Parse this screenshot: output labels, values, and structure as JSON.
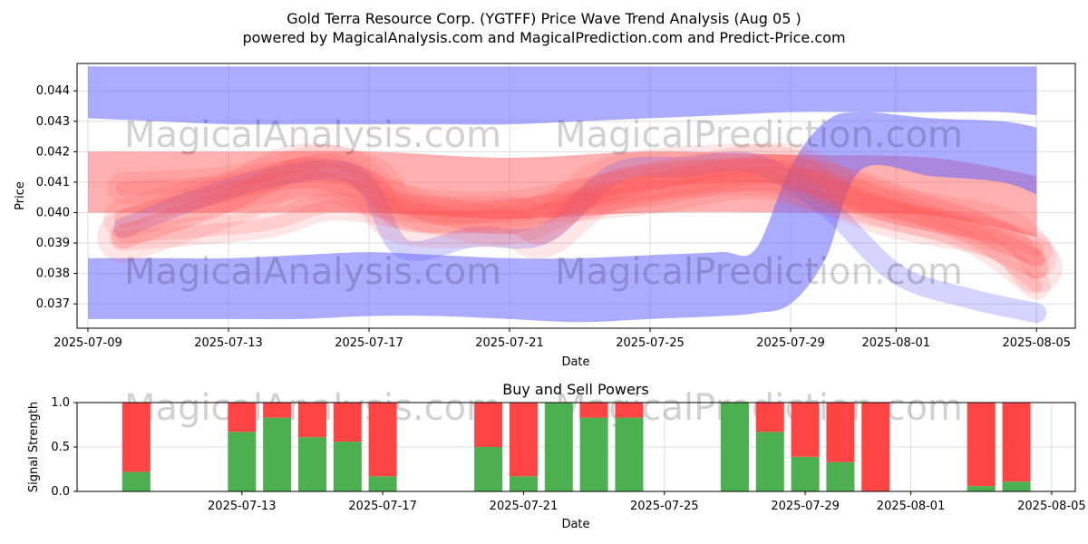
{
  "title_line1": "Gold Terra Resource Corp. (YGTFF) Price Wave Trend Analysis (Aug 05 )",
  "title_line2": "powered by MagicalAnalysis.com and MagicalPrediction.com and Predict-Price.com",
  "watermarks": [
    "MagicalAnalysis.com",
    "MagicalPrediction.com"
  ],
  "colors": {
    "blue_band": "#6666ff",
    "red_band": "#ff4d4d",
    "buy": "#4caf50",
    "sell": "#ff4444",
    "grid": "#dddddd"
  },
  "chart_data": [
    {
      "type": "area",
      "name": "price-wave-trend",
      "xlabel": "Date",
      "ylabel": "Price",
      "x_range": [
        "2025-07-09",
        "2025-08-06"
      ],
      "ylim": [
        0.0362,
        0.0449
      ],
      "yticks": [
        0.037,
        0.038,
        0.039,
        0.04,
        0.041,
        0.042,
        0.043,
        0.044
      ],
      "ytick_labels": [
        "0.037",
        "0.038",
        "0.039",
        "0.040",
        "0.041",
        "0.042",
        "0.043",
        "0.044"
      ],
      "xticks": [
        "2025-07-09",
        "2025-07-13",
        "2025-07-17",
        "2025-07-21",
        "2025-07-25",
        "2025-07-29",
        "2025-08-01",
        "2025-08-05"
      ],
      "grid": true,
      "blue_bands": [
        {
          "name": "upper-envelope",
          "dates": [
            "2025-07-09",
            "2025-07-11",
            "2025-07-13",
            "2025-07-15",
            "2025-07-17",
            "2025-07-19",
            "2025-07-21",
            "2025-07-23",
            "2025-07-25",
            "2025-07-27",
            "2025-07-29",
            "2025-07-31",
            "2025-08-02",
            "2025-08-04",
            "2025-08-05"
          ],
          "upper": [
            0.0448,
            0.0448,
            0.0448,
            0.0448,
            0.0448,
            0.0448,
            0.0448,
            0.0448,
            0.0448,
            0.0448,
            0.0448,
            0.0448,
            0.0448,
            0.0448,
            0.0448
          ],
          "lower": [
            0.0431,
            0.043,
            0.0429,
            0.0429,
            0.0429,
            0.0429,
            0.0429,
            0.043,
            0.0431,
            0.0432,
            0.0433,
            0.0433,
            0.0433,
            0.0433,
            0.0432
          ]
        },
        {
          "name": "lower-envelope-breakout",
          "dates": [
            "2025-07-09",
            "2025-07-11",
            "2025-07-13",
            "2025-07-15",
            "2025-07-17",
            "2025-07-19",
            "2025-07-21",
            "2025-07-23",
            "2025-07-25",
            "2025-07-27",
            "2025-07-28",
            "2025-07-29",
            "2025-07-30",
            "2025-07-31",
            "2025-08-02",
            "2025-08-04",
            "2025-08-05"
          ],
          "upper": [
            0.0385,
            0.0385,
            0.0385,
            0.0386,
            0.0387,
            0.0386,
            0.0385,
            0.0385,
            0.0386,
            0.0387,
            0.0388,
            0.0415,
            0.043,
            0.0433,
            0.0431,
            0.043,
            0.0428
          ],
          "lower": [
            0.0365,
            0.0365,
            0.0365,
            0.0365,
            0.0366,
            0.0366,
            0.0365,
            0.0364,
            0.0365,
            0.0366,
            0.0367,
            0.037,
            0.0385,
            0.0414,
            0.0412,
            0.041,
            0.0406
          ]
        },
        {
          "name": "wave-path",
          "dates": [
            "2025-07-10",
            "2025-07-12",
            "2025-07-14",
            "2025-07-16",
            "2025-07-17",
            "2025-07-18",
            "2025-07-20",
            "2025-07-22",
            "2025-07-24",
            "2025-07-26",
            "2025-07-28",
            "2025-07-30",
            "2025-08-01",
            "2025-08-03",
            "2025-08-05"
          ],
          "center": [
            0.0395,
            0.0404,
            0.0411,
            0.0414,
            0.0408,
            0.0388,
            0.0392,
            0.0393,
            0.0413,
            0.0415,
            0.0416,
            0.0402,
            0.038,
            0.0372,
            0.0367
          ]
        }
      ],
      "red_bands": [
        {
          "name": "main-channel",
          "dates": [
            "2025-07-09",
            "2025-07-13",
            "2025-07-17",
            "2025-07-21",
            "2025-07-25",
            "2025-07-29",
            "2025-08-02",
            "2025-08-05"
          ],
          "upper": [
            0.042,
            0.042,
            0.042,
            0.0418,
            0.042,
            0.0419,
            0.0418,
            0.0412
          ],
          "lower": [
            0.04,
            0.04,
            0.04,
            0.0398,
            0.04,
            0.04,
            0.0399,
            0.0392
          ]
        },
        {
          "name": "trend-a",
          "dates": [
            "2025-07-10",
            "2025-07-13",
            "2025-07-15",
            "2025-07-17",
            "2025-07-18",
            "2025-07-21",
            "2025-07-22",
            "2025-07-24",
            "2025-07-28",
            "2025-07-30",
            "2025-08-01",
            "2025-08-04",
            "2025-08-05"
          ],
          "center": [
            0.0392,
            0.0404,
            0.0414,
            0.041,
            0.0398,
            0.0397,
            0.0394,
            0.041,
            0.0414,
            0.0408,
            0.04,
            0.0393,
            0.0382
          ]
        },
        {
          "name": "trend-b",
          "dates": [
            "2025-07-10",
            "2025-07-12",
            "2025-07-15",
            "2025-07-17",
            "2025-07-19",
            "2025-07-21",
            "2025-07-23",
            "2025-07-26",
            "2025-07-29",
            "2025-07-31",
            "2025-08-03",
            "2025-08-05"
          ],
          "center": [
            0.0398,
            0.0404,
            0.0411,
            0.0406,
            0.0399,
            0.0396,
            0.0404,
            0.0412,
            0.0416,
            0.0404,
            0.0395,
            0.0385
          ]
        },
        {
          "name": "trend-c",
          "dates": [
            "2025-07-10",
            "2025-07-13",
            "2025-07-16",
            "2025-07-18",
            "2025-07-21",
            "2025-07-24",
            "2025-07-27",
            "2025-07-30",
            "2025-08-02",
            "2025-08-05"
          ],
          "center": [
            0.0408,
            0.041,
            0.0417,
            0.0404,
            0.0402,
            0.0408,
            0.0412,
            0.0411,
            0.04,
            0.0388
          ]
        },
        {
          "name": "trend-d",
          "dates": [
            "2025-07-10",
            "2025-07-14",
            "2025-07-16",
            "2025-07-19",
            "2025-07-22",
            "2025-07-25",
            "2025-07-28",
            "2025-07-31",
            "2025-08-03",
            "2025-08-05"
          ],
          "center": [
            0.0392,
            0.0396,
            0.0402,
            0.0398,
            0.0401,
            0.0404,
            0.0409,
            0.0401,
            0.0392,
            0.0376
          ]
        }
      ]
    },
    {
      "type": "bar",
      "name": "buy-sell-powers",
      "title": "Buy and Sell Powers",
      "xlabel": "Date",
      "ylabel": "Signal Strength",
      "ylim": [
        0,
        1
      ],
      "yticks": [
        0.0,
        0.5,
        1.0
      ],
      "ytick_labels": [
        "0.0",
        "0.5",
        "1.0"
      ],
      "xticks": [
        "2025-07-13",
        "2025-07-17",
        "2025-07-21",
        "2025-07-25",
        "2025-07-29",
        "2025-08-01",
        "2025-08-05"
      ],
      "series": [
        {
          "name": "Buy",
          "color": "#4caf50"
        },
        {
          "name": "Sell",
          "color": "#ff4444"
        }
      ],
      "categories": [
        "2025-07-10",
        "2025-07-13",
        "2025-07-14",
        "2025-07-15",
        "2025-07-16",
        "2025-07-17",
        "2025-07-20",
        "2025-07-21",
        "2025-07-22",
        "2025-07-23",
        "2025-07-24",
        "2025-07-27",
        "2025-07-28",
        "2025-07-29",
        "2025-07-30",
        "2025-07-31",
        "2025-08-03",
        "2025-08-04"
      ],
      "buy": [
        0.22,
        0.67,
        0.83,
        0.61,
        0.56,
        0.17,
        0.5,
        0.17,
        1.0,
        0.83,
        0.83,
        1.0,
        0.67,
        0.39,
        0.33,
        0.0,
        0.06,
        0.11
      ],
      "sell": [
        0.78,
        0.33,
        0.17,
        0.39,
        0.44,
        0.83,
        0.5,
        0.83,
        0.0,
        0.17,
        0.17,
        0.0,
        0.33,
        0.61,
        0.67,
        1.0,
        0.94,
        0.89
      ]
    }
  ]
}
